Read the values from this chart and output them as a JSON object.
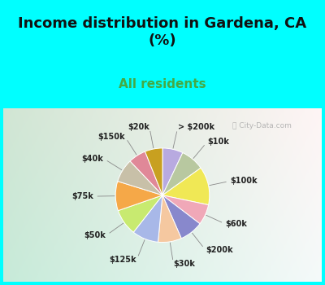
{
  "title": "Income distribution in Gardena, CA\n(%)",
  "subtitle": "All residents",
  "title_color": "#111111",
  "subtitle_color": "#44aa44",
  "bg_color_top": "#00ffff",
  "bg_color_chart_left": "#c8e8d8",
  "bg_color_chart_right": "#e0f4f0",
  "labels": [
    "> $200k",
    "$10k",
    "$100k",
    "$60k",
    "$200k",
    "$30k",
    "$125k",
    "$50k",
    "$75k",
    "$40k",
    "$150k",
    "$20k"
  ],
  "sizes": [
    7,
    8,
    13,
    7,
    8,
    8,
    9,
    9,
    10,
    8,
    6,
    6
  ],
  "colors": [
    "#b8aae0",
    "#b8c8a0",
    "#f0e855",
    "#f0a8b8",
    "#8888cc",
    "#f5c8a0",
    "#a8b8e8",
    "#c8ea70",
    "#f5a848",
    "#c8c0a8",
    "#e08898",
    "#c8a020"
  ],
  "startangle": 90,
  "wedge_edge_color": "#ffffff",
  "label_fontsize": 7.0,
  "label_color": "#222222",
  "title_fontsize": 13,
  "subtitle_fontsize": 11
}
